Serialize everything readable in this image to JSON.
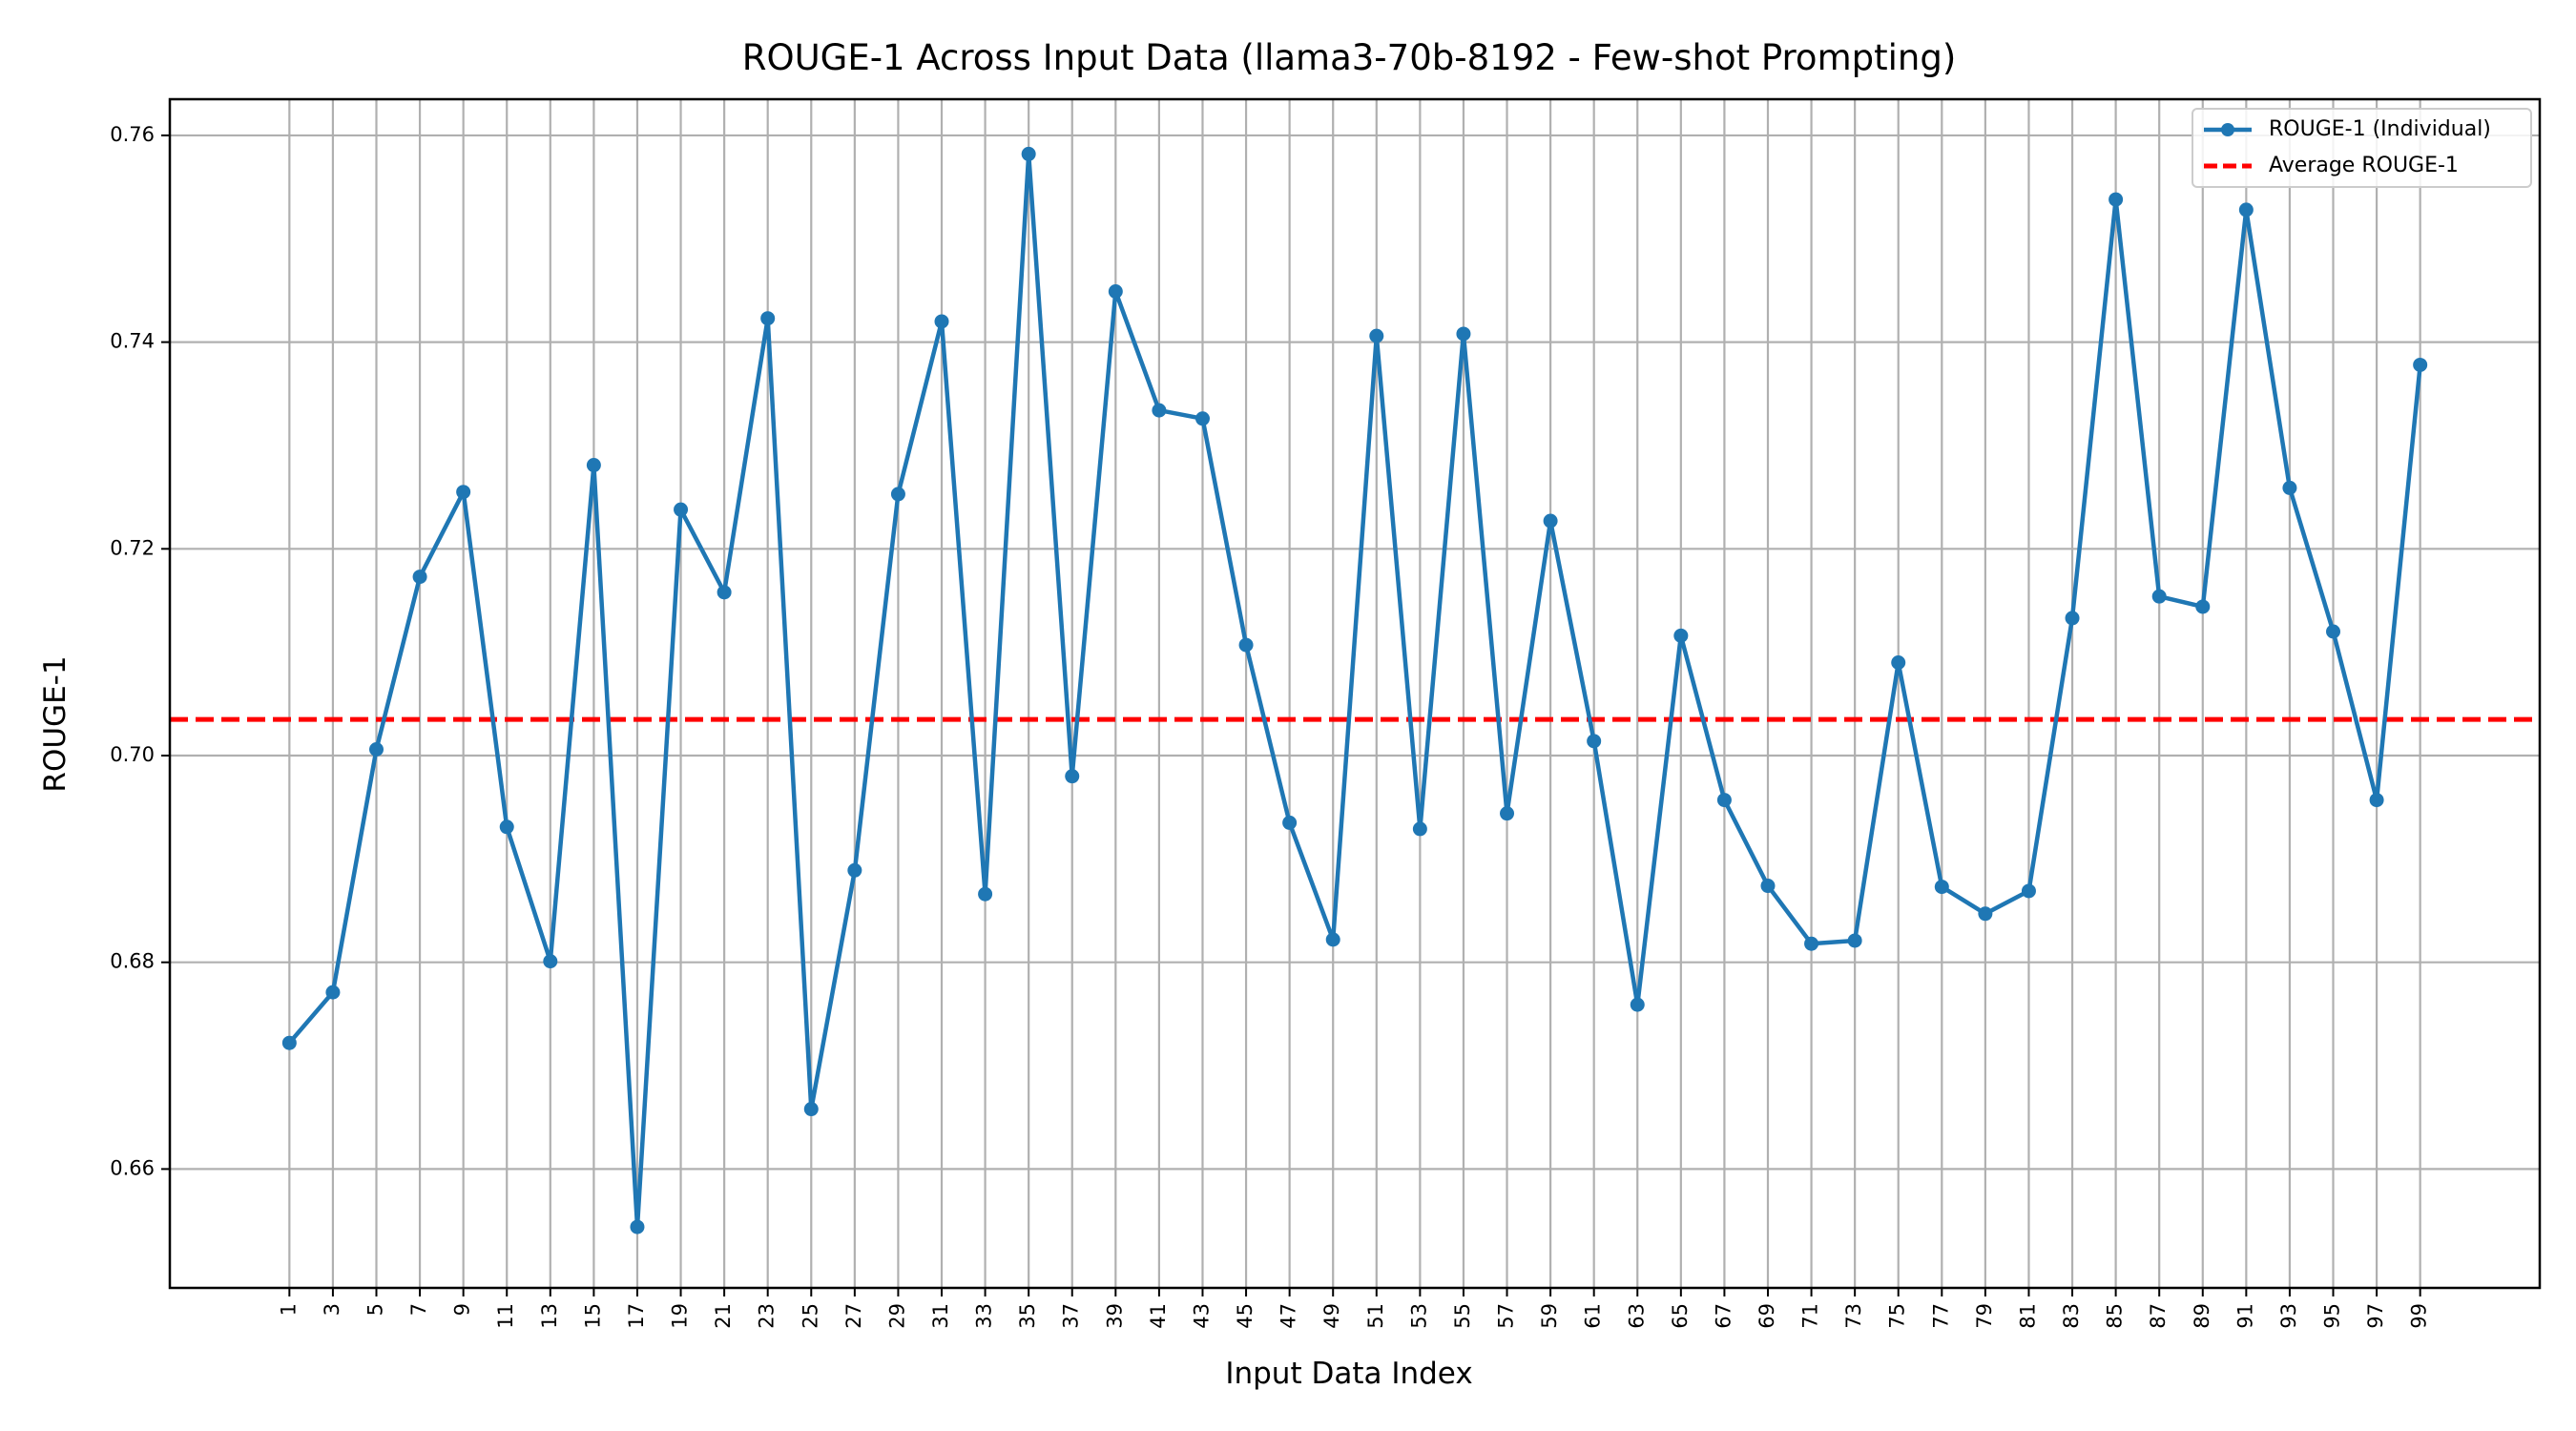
{
  "chart_data": {
    "type": "line",
    "title": "ROUGE-1 Across Input Data (llama3-70b-8192 - Few-shot Prompting)",
    "xlabel": "Input Data Index",
    "ylabel": "ROUGE-1",
    "x": [
      1,
      3,
      5,
      7,
      9,
      11,
      13,
      15,
      17,
      19,
      21,
      23,
      25,
      27,
      29,
      31,
      33,
      35,
      37,
      39,
      41,
      43,
      45,
      47,
      49,
      51,
      53,
      55,
      57,
      59,
      61,
      63,
      65,
      67,
      69,
      71,
      73,
      75,
      77,
      79,
      81,
      83,
      85,
      87,
      89,
      91,
      93,
      95,
      97,
      99
    ],
    "xticks": [
      "1",
      "3",
      "5",
      "7",
      "9",
      "11",
      "13",
      "15",
      "17",
      "19",
      "21",
      "23",
      "25",
      "27",
      "29",
      "31",
      "33",
      "35",
      "37",
      "39",
      "41",
      "43",
      "45",
      "47",
      "49",
      "51",
      "53",
      "55",
      "57",
      "59",
      "61",
      "63",
      "65",
      "67",
      "69",
      "71",
      "73",
      "75",
      "77",
      "79",
      "81",
      "83",
      "85",
      "87",
      "89",
      "91",
      "93",
      "95",
      "97",
      "99"
    ],
    "xlim": [
      -4.5,
      104.5
    ],
    "ylim": [
      0.6485,
      0.7635
    ],
    "yticks": [
      "0.66",
      "0.68",
      "0.70",
      "0.72",
      "0.74",
      "0.76"
    ],
    "ytick_values": [
      0.66,
      0.68,
      0.7,
      0.72,
      0.74,
      0.76
    ],
    "grid": true,
    "legend_position": "top-right",
    "series": [
      {
        "name": "ROUGE-1 (Individual)",
        "color": "#1f77b4",
        "style": "solid-with-markers",
        "values": [
          0.6722,
          0.6771,
          0.7006,
          0.7173,
          0.7255,
          0.6931,
          0.6801,
          0.7281,
          0.6544,
          0.7238,
          0.7158,
          0.7423,
          0.6658,
          0.6889,
          0.7253,
          0.742,
          0.6866,
          0.7582,
          0.698,
          0.7449,
          0.7334,
          0.7326,
          0.7107,
          0.6935,
          0.6822,
          0.7406,
          0.6929,
          0.7408,
          0.6944,
          0.7227,
          0.7014,
          0.6759,
          0.7116,
          0.6957,
          0.6874,
          0.6818,
          0.6821,
          0.709,
          0.6873,
          0.6847,
          0.6869,
          0.7133,
          0.7538,
          0.7154,
          0.7144,
          0.7528,
          0.7259,
          0.712,
          0.6957,
          0.7378
        ]
      },
      {
        "name": "Average ROUGE-1",
        "color": "#ff0000",
        "style": "dashed",
        "value": 0.7035
      }
    ]
  }
}
